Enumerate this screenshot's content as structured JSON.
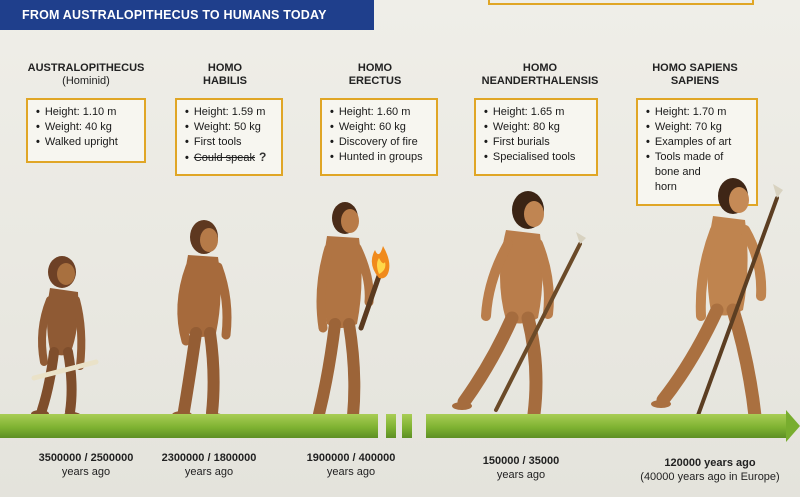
{
  "title": "FROM AUSTRALOPITHECUS TO HUMANS TODAY",
  "stages": [
    {
      "name": "AUSTRALOPITHECUS",
      "sub": "(Hominid)",
      "facts": [
        "Height: 1.10 m",
        "Weight: 40 kg",
        "Walked upright"
      ],
      "date": "3500000 / 2500000",
      "date_sub": "years ago"
    },
    {
      "name": "HOMO",
      "sub": "HABILIS",
      "facts": [
        "Height: 1.59 m",
        "Weight: 50 kg",
        "First tools",
        "Could speak"
      ],
      "question_mark": "?",
      "date": "2300000 / 1800000",
      "date_sub": "years ago"
    },
    {
      "name": "HOMO",
      "sub": "ERECTUS",
      "facts": [
        "Height: 1.60 m",
        "Weight: 60 kg",
        "Discovery of fire",
        "Hunted in groups"
      ],
      "date": "1900000 / 400000",
      "date_sub": "years ago"
    },
    {
      "name": "HOMO",
      "sub": "NEANDERTHALENSIS",
      "facts": [
        "Height: 1.65 m",
        "Weight: 80 kg",
        "First burials",
        "Specialised tools"
      ],
      "date": "150000 / 35000",
      "date_sub": "years ago"
    },
    {
      "name": "HOMO SAPIENS",
      "sub": "SAPIENS",
      "facts": [
        "Height: 1.70 m",
        "Weight: 70 kg",
        "Examples of art",
        "Tools made of",
        "bone and",
        "horn"
      ],
      "date": "120000 years ago",
      "date_sub": "(40000 years ago in Europe)"
    }
  ],
  "colors": {
    "banner": "#1f3f8c",
    "box_border": "#e0a626",
    "timeline": "#7fb332",
    "skin": "#b5774a",
    "hair": "#4a2c18"
  },
  "icons": [
    "torch-icon",
    "spear-icon",
    "bone-club-icon"
  ]
}
